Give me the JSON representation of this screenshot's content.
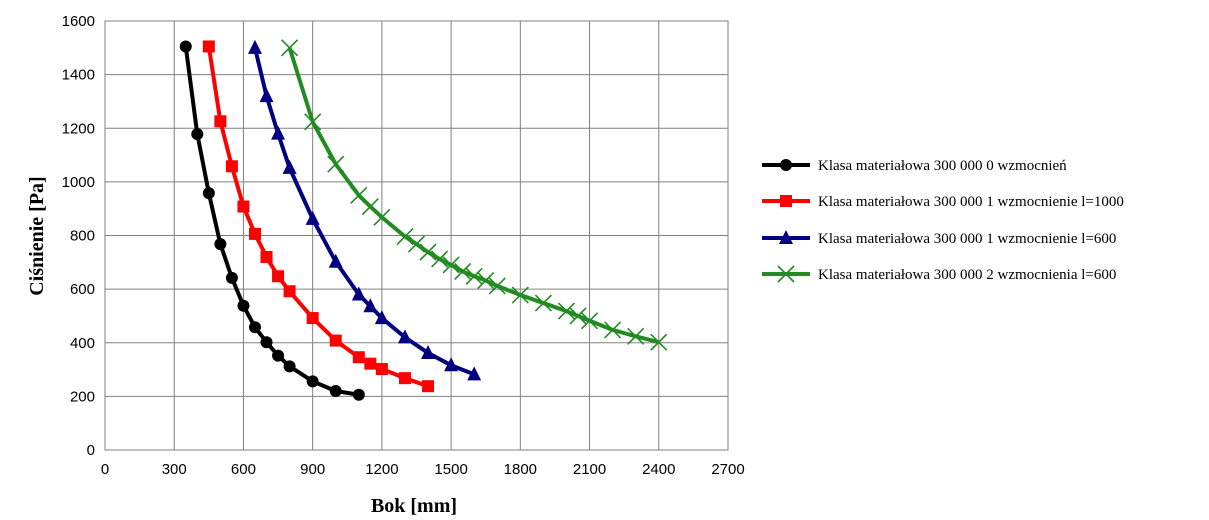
{
  "chart_data": {
    "type": "line",
    "title": "",
    "xlabel": "Bok [mm]",
    "ylabel": "Ciśnienie [Pa]",
    "xlim": [
      0,
      2700
    ],
    "ylim": [
      0,
      1600
    ],
    "xticks": [
      "0",
      "300",
      "600",
      "900",
      "1200",
      "1500",
      "1800",
      "2100",
      "2400",
      "2700"
    ],
    "yticks": [
      "0",
      "200",
      "400",
      "600",
      "800",
      "1000",
      "1200",
      "1400",
      "1600"
    ],
    "grid": true,
    "legend_position": "right",
    "series": [
      {
        "name": "Klasa materiałowa 300 000 0 wzmocnień",
        "color": "#000000",
        "marker": "circle",
        "x": [
          350,
          400,
          450,
          500,
          550,
          600,
          650,
          700,
          750,
          800,
          900,
          1000,
          1100
        ],
        "y": [
          1505,
          1178,
          958,
          768,
          642,
          538,
          458,
          402,
          352,
          312,
          256,
          220,
          206
        ]
      },
      {
        "name": "Klasa materiałowa 300 000 1 wzmocnienie l=1000",
        "color": "#ff0000",
        "marker": "square",
        "x": [
          450,
          500,
          550,
          600,
          650,
          700,
          750,
          800,
          900,
          1000,
          1100,
          1150,
          1200,
          1300,
          1400
        ],
        "y": [
          1505,
          1226,
          1058,
          908,
          806,
          720,
          648,
          592,
          492,
          408,
          346,
          322,
          302,
          268,
          238
        ]
      },
      {
        "name": "Klasa materiałowa 300 000 1 wzmocnienie l=600",
        "color": "#000080",
        "marker": "triangle",
        "x": [
          650,
          700,
          750,
          800,
          900,
          1000,
          1100,
          1150,
          1200,
          1300,
          1400,
          1500,
          1600
        ],
        "y": [
          1500,
          1320,
          1180,
          1052,
          862,
          702,
          580,
          536,
          492,
          420,
          362,
          316,
          282
        ]
      },
      {
        "name": "Klasa materiałowa 300 000 2 wzmocnienia l=600",
        "color": "#228b22",
        "marker": "x",
        "x": [
          800,
          900,
          1000,
          1100,
          1150,
          1200,
          1300,
          1350,
          1400,
          1450,
          1500,
          1550,
          1600,
          1650,
          1700,
          1800,
          1900,
          2000,
          2050,
          2100,
          2200,
          2300,
          2400
        ],
        "y": [
          1500,
          1224,
          1066,
          950,
          908,
          868,
          796,
          768,
          738,
          712,
          690,
          666,
          648,
          632,
          612,
          578,
          548,
          518,
          500,
          482,
          448,
          424,
          402
        ]
      }
    ]
  }
}
